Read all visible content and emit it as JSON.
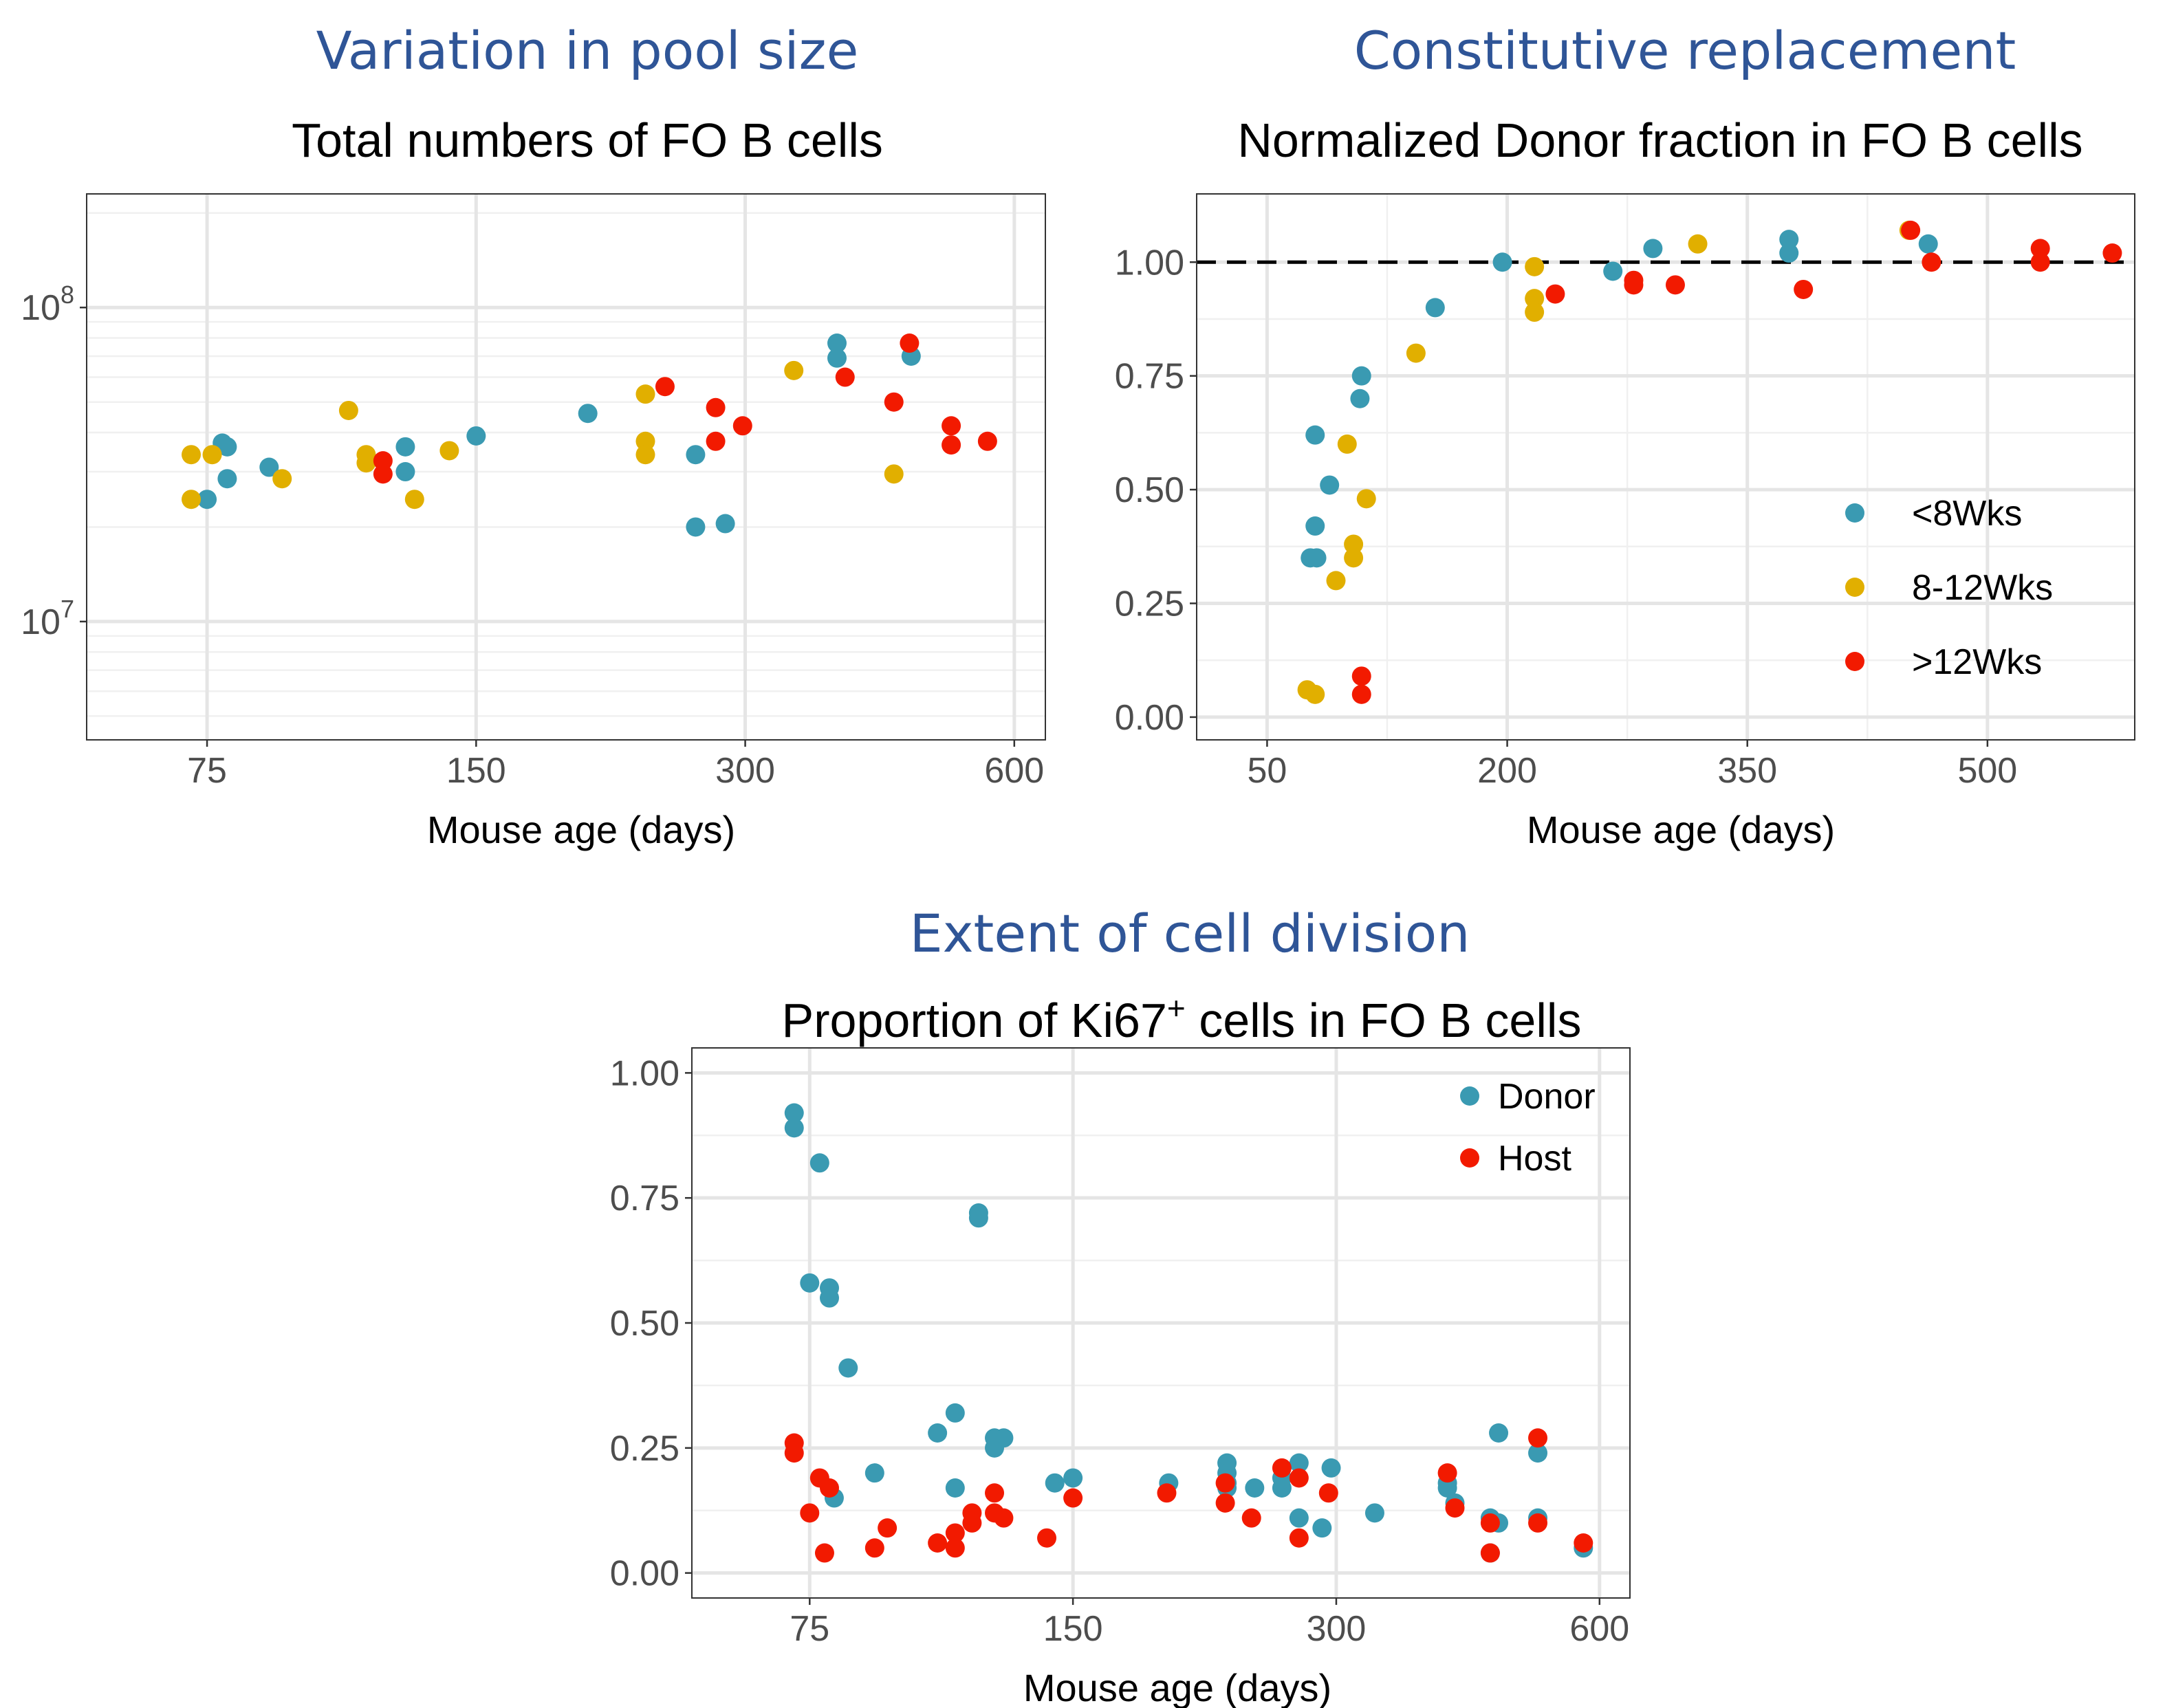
{
  "colors": {
    "section_title": "#2f5597",
    "teal": "#3a9ab2",
    "gold": "#e1af00",
    "red": "#f21a00"
  },
  "chart_data": [
    {
      "type": "scatter",
      "section_title": "Variation in pool size",
      "title": "Total numbers of FO B cells",
      "xlabel": "Mouse age (days)",
      "ylabel": "",
      "x_scale": "log",
      "y_scale": "log",
      "xlim": [
        55,
        650
      ],
      "ylim": [
        4200000,
        230000000
      ],
      "x_ticks": [
        75,
        150,
        300,
        600
      ],
      "x_tick_labels": [
        "75",
        "150",
        "300",
        "600"
      ],
      "y_ticks": [
        10000000,
        100000000
      ],
      "y_tick_labels": [
        {
          "base": "10",
          "exp": "7"
        },
        {
          "base": "10",
          "exp": "8"
        }
      ],
      "grid": true,
      "legend": "none",
      "series": [
        {
          "color_key": "teal",
          "points": [
            [
              75,
              24500000
            ],
            [
              78,
              37000000
            ],
            [
              79,
              36000000
            ],
            [
              79,
              28500000
            ],
            [
              88,
              31000000
            ],
            [
              125,
              36000000
            ],
            [
              125,
              30000000
            ],
            [
              150,
              39000000
            ],
            [
              200,
              46000000
            ],
            [
              264,
              20000000
            ],
            [
              264,
              34000000
            ],
            [
              285,
              20500000
            ],
            [
              380,
              77000000
            ],
            [
              380,
              69000000
            ],
            [
              460,
              70000000
            ]
          ]
        },
        {
          "color_key": "gold",
          "points": [
            [
              72,
              34000000
            ],
            [
              72,
              24500000
            ],
            [
              76,
              34000000
            ],
            [
              91,
              28500000
            ],
            [
              108,
              47000000
            ],
            [
              113,
              34000000
            ],
            [
              113,
              32000000
            ],
            [
              128,
              24500000
            ],
            [
              140,
              35000000
            ],
            [
              232,
              53000000
            ],
            [
              232,
              37500000
            ],
            [
              232,
              34000000
            ],
            [
              340,
              63000000
            ],
            [
              440,
              29500000
            ]
          ]
        },
        {
          "color_key": "red",
          "points": [
            [
              118,
              32500000
            ],
            [
              118,
              29500000
            ],
            [
              244,
              56000000
            ],
            [
              278,
              48000000
            ],
            [
              278,
              37500000
            ],
            [
              298,
              42000000
            ],
            [
              388,
              60000000
            ],
            [
              440,
              50000000
            ],
            [
              458,
              77000000
            ],
            [
              510,
              42000000
            ],
            [
              510,
              36500000
            ],
            [
              560,
              37500000
            ]
          ]
        }
      ]
    },
    {
      "type": "scatter",
      "section_title": "Constitutive replacement",
      "title": "Normalized Donor fraction in FO B cells",
      "xlabel": "Mouse age (days)",
      "ylabel": "",
      "xlim": [
        6,
        592
      ],
      "ylim": [
        -0.05,
        1.15
      ],
      "x_ticks": [
        50,
        200,
        350,
        500
      ],
      "x_tick_labels": [
        "50",
        "200",
        "350",
        "500"
      ],
      "y_ticks": [
        0,
        0.25,
        0.5,
        0.75,
        1
      ],
      "y_tick_labels": [
        "0.00",
        "0.25",
        "0.50",
        "0.75",
        "1.00"
      ],
      "reference_line": {
        "y": 1.0,
        "style": "dashed"
      },
      "grid": true,
      "legend": "right",
      "legend_title": "",
      "series": [
        {
          "name": "<8Wks",
          "color_key": "teal",
          "points": [
            [
              80,
              0.62
            ],
            [
              80,
              0.42
            ],
            [
              77,
              0.35
            ],
            [
              81,
              0.35
            ],
            [
              89,
              0.51
            ],
            [
              109,
              0.75
            ],
            [
              108,
              0.7
            ],
            [
              155,
              0.9
            ],
            [
              197,
              1.0
            ],
            [
              266,
              0.98
            ],
            [
              291,
              1.03
            ],
            [
              376,
              1.05
            ],
            [
              376,
              1.02
            ],
            [
              463,
              1.04
            ]
          ]
        },
        {
          "name": "8-12Wks",
          "color_key": "gold",
          "points": [
            [
              75,
              0.06
            ],
            [
              80,
              0.05
            ],
            [
              93,
              0.3
            ],
            [
              100,
              0.6
            ],
            [
              104,
              0.38
            ],
            [
              104,
              0.35
            ],
            [
              112,
              0.48
            ],
            [
              143,
              0.8
            ],
            [
              217,
              0.99
            ],
            [
              217,
              0.92
            ],
            [
              217,
              0.89
            ],
            [
              319,
              1.04
            ],
            [
              451,
              1.07
            ]
          ]
        },
        {
          "name": ">12Wks",
          "color_key": "red",
          "points": [
            [
              109,
              0.09
            ],
            [
              109,
              0.05
            ],
            [
              230,
              0.93
            ],
            [
              279,
              0.96
            ],
            [
              279,
              0.95
            ],
            [
              305,
              0.95
            ],
            [
              385,
              0.94
            ],
            [
              452,
              1.07
            ],
            [
              465,
              1.0
            ],
            [
              533,
              1.03
            ],
            [
              533,
              1.0
            ],
            [
              578,
              1.02
            ]
          ]
        }
      ]
    },
    {
      "type": "scatter",
      "section_title": "Extent of cell division",
      "title": "Proportion of Ki67",
      "title_superscript": "+",
      "title_suffix": " cells in FO B cells",
      "xlabel": "Mouse age (days)",
      "ylabel": "",
      "x_scale": "log",
      "xlim": [
        55,
        650
      ],
      "ylim": [
        -0.05,
        1.05
      ],
      "x_ticks": [
        75,
        150,
        300,
        600
      ],
      "x_tick_labels": [
        "75",
        "150",
        "300",
        "600"
      ],
      "y_ticks": [
        0,
        0.25,
        0.5,
        0.75,
        1
      ],
      "y_tick_labels": [
        "0.00",
        "0.25",
        "0.50",
        "0.75",
        "1.00"
      ],
      "grid": true,
      "legend": "top-right",
      "legend_title": "",
      "series": [
        {
          "name": "Donor",
          "color_key": "teal",
          "points": [
            [
              72,
              0.92
            ],
            [
              72,
              0.89
            ],
            [
              77,
              0.82
            ],
            [
              75,
              0.58
            ],
            [
              79,
              0.57
            ],
            [
              79,
              0.55
            ],
            [
              83,
              0.41
            ],
            [
              80,
              0.15
            ],
            [
              89,
              0.2
            ],
            [
              105,
              0.28
            ],
            [
              110,
              0.32
            ],
            [
              110,
              0.17
            ],
            [
              117,
              0.72
            ],
            [
              117,
              0.71
            ],
            [
              122,
              0.27
            ],
            [
              122,
              0.25
            ],
            [
              125,
              0.27
            ],
            [
              143,
              0.18
            ],
            [
              150,
              0.19
            ],
            [
              193,
              0.18
            ],
            [
              225,
              0.22
            ],
            [
              225,
              0.2
            ],
            [
              225,
              0.18
            ],
            [
              225,
              0.17
            ],
            [
              242,
              0.17
            ],
            [
              260,
              0.19
            ],
            [
              260,
              0.17
            ],
            [
              272,
              0.22
            ],
            [
              272,
              0.11
            ],
            [
              289,
              0.09
            ],
            [
              296,
              0.21
            ],
            [
              332,
              0.12
            ],
            [
              402,
              0.18
            ],
            [
              402,
              0.17
            ],
            [
              410,
              0.14
            ],
            [
              450,
              0.11
            ],
            [
              450,
              0.04
            ],
            [
              460,
              0.28
            ],
            [
              460,
              0.1
            ],
            [
              510,
              0.24
            ],
            [
              510,
              0.11
            ],
            [
              575,
              0.05
            ]
          ]
        },
        {
          "name": "Host",
          "color_key": "red",
          "points": [
            [
              72,
              0.26
            ],
            [
              72,
              0.24
            ],
            [
              75,
              0.12
            ],
            [
              77,
              0.19
            ],
            [
              78,
              0.04
            ],
            [
              79,
              0.17
            ],
            [
              89,
              0.05
            ],
            [
              92,
              0.09
            ],
            [
              105,
              0.06
            ],
            [
              110,
              0.08
            ],
            [
              110,
              0.05
            ],
            [
              115,
              0.12
            ],
            [
              115,
              0.1
            ],
            [
              122,
              0.16
            ],
            [
              122,
              0.12
            ],
            [
              125,
              0.11
            ],
            [
              140,
              0.07
            ],
            [
              150,
              0.15
            ],
            [
              192,
              0.16
            ],
            [
              224,
              0.14
            ],
            [
              224,
              0.18
            ],
            [
              240,
              0.11
            ],
            [
              260,
              0.21
            ],
            [
              272,
              0.19
            ],
            [
              272,
              0.07
            ],
            [
              294,
              0.16
            ],
            [
              402,
              0.2
            ],
            [
              410,
              0.13
            ],
            [
              450,
              0.1
            ],
            [
              450,
              0.04
            ],
            [
              510,
              0.27
            ],
            [
              510,
              0.1
            ],
            [
              575,
              0.06
            ]
          ]
        }
      ]
    }
  ]
}
